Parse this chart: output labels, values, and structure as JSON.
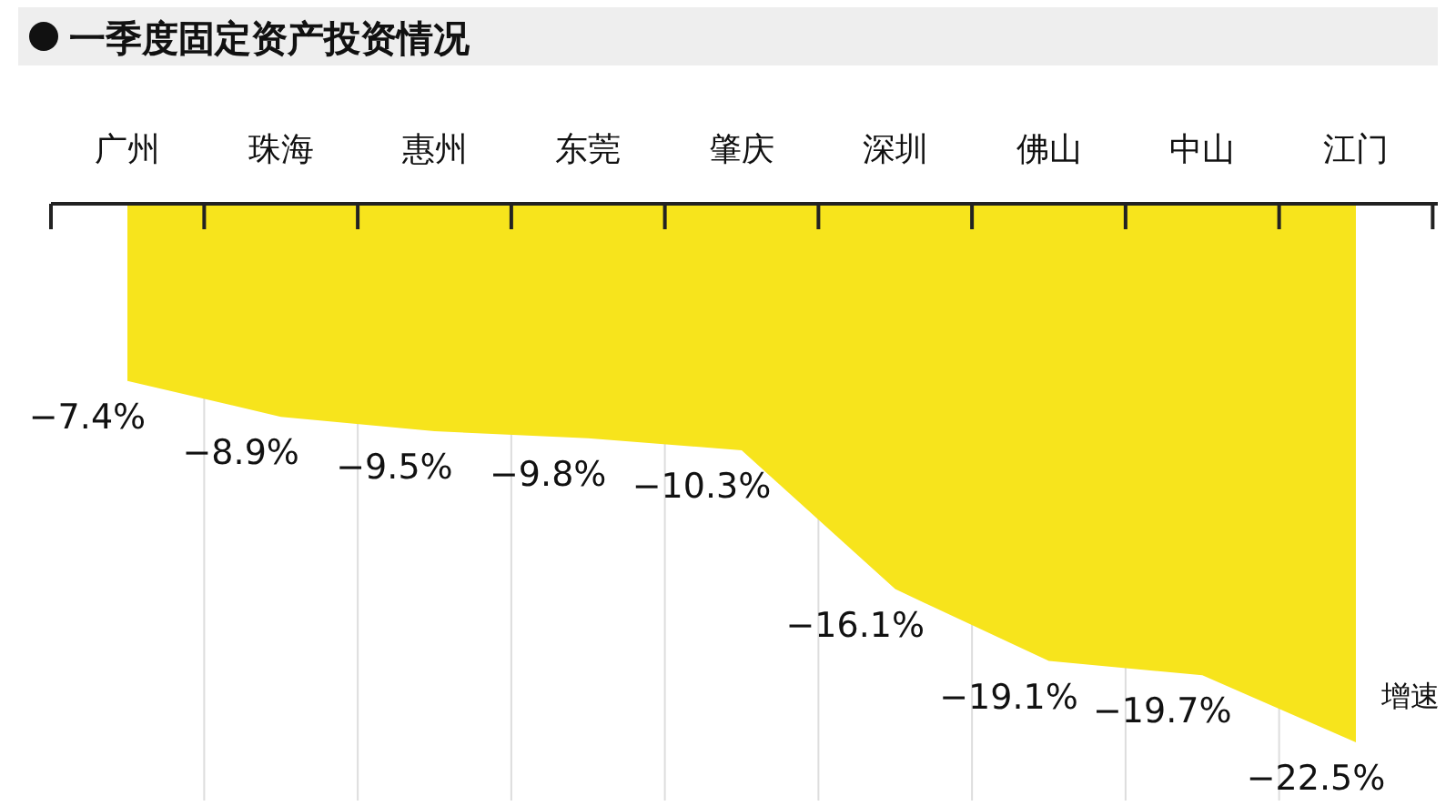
{
  "chart_data": {
    "type": "area",
    "title": "一季度固定资产投资情况",
    "categories": [
      "广州",
      "珠海",
      "惠州",
      "东莞",
      "肇庆",
      "深圳",
      "佛山",
      "中山",
      "江门"
    ],
    "values": [
      -7.4,
      -8.9,
      -9.5,
      -9.8,
      -10.3,
      -16.1,
      -19.1,
      -19.7,
      -22.5
    ],
    "color": "#f7e41c",
    "value_labels": [
      "−7.4%",
      "−8.9%",
      "−9.5%",
      "−9.8%",
      "−10.3%",
      "−16.1%",
      "−19.1%",
      "−19.7%",
      "−22.5%"
    ],
    "grid": "x",
    "annotations": [
      "增速"
    ]
  }
}
